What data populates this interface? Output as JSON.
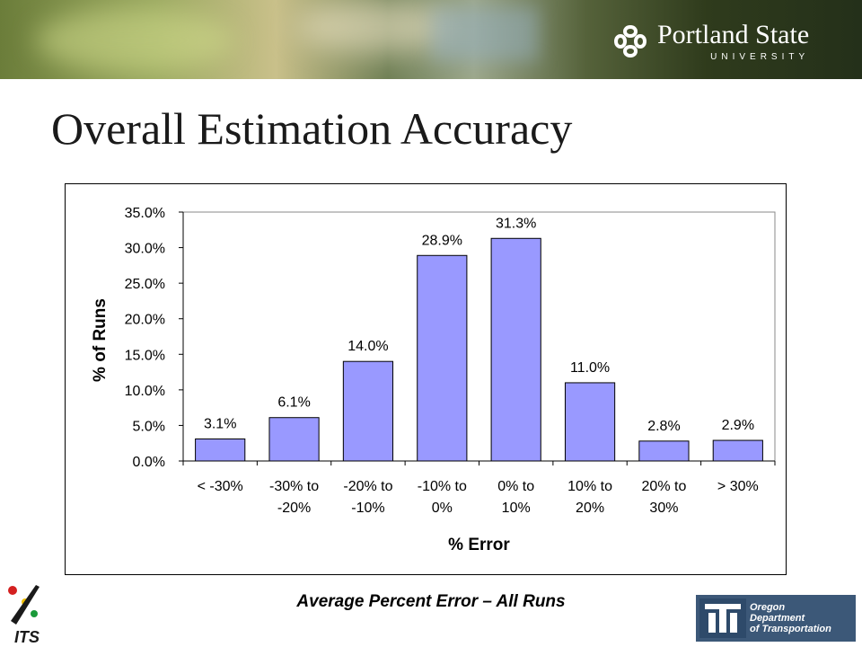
{
  "header": {
    "university_name": "Portland State",
    "university_sub": "UNIVERSITY"
  },
  "slide": {
    "title": "Overall Estimation Accuracy",
    "caption": "Average Percent Error –  All Runs"
  },
  "footer": {
    "its_label": "ITS",
    "odot_lines": [
      "Oregon",
      "Department",
      "of Transportation"
    ]
  },
  "chart_data": {
    "type": "bar",
    "categories": [
      [
        "< -30%"
      ],
      [
        "-30% to",
        "-20%"
      ],
      [
        "-20% to",
        "-10%"
      ],
      [
        "-10% to",
        "0%"
      ],
      [
        "0% to",
        "10%"
      ],
      [
        "10% to",
        "20%"
      ],
      [
        "20% to",
        "30%"
      ],
      [
        "> 30%"
      ]
    ],
    "values": [
      3.1,
      6.1,
      14.0,
      28.9,
      31.3,
      11.0,
      2.8,
      2.9
    ],
    "data_labels": [
      "3.1%",
      "6.1%",
      "14.0%",
      "28.9%",
      "31.3%",
      "11.0%",
      "2.8%",
      "2.9%"
    ],
    "xlabel": "% Error",
    "ylabel": "% of Runs",
    "ylim": [
      0,
      35
    ],
    "yticks": [
      0,
      5,
      10,
      15,
      20,
      25,
      30,
      35
    ],
    "ytick_labels": [
      "0.0%",
      "5.0%",
      "10.0%",
      "15.0%",
      "20.0%",
      "25.0%",
      "30.0%",
      "35.0%"
    ],
    "bar_color": "#9999ff",
    "grid": false
  }
}
